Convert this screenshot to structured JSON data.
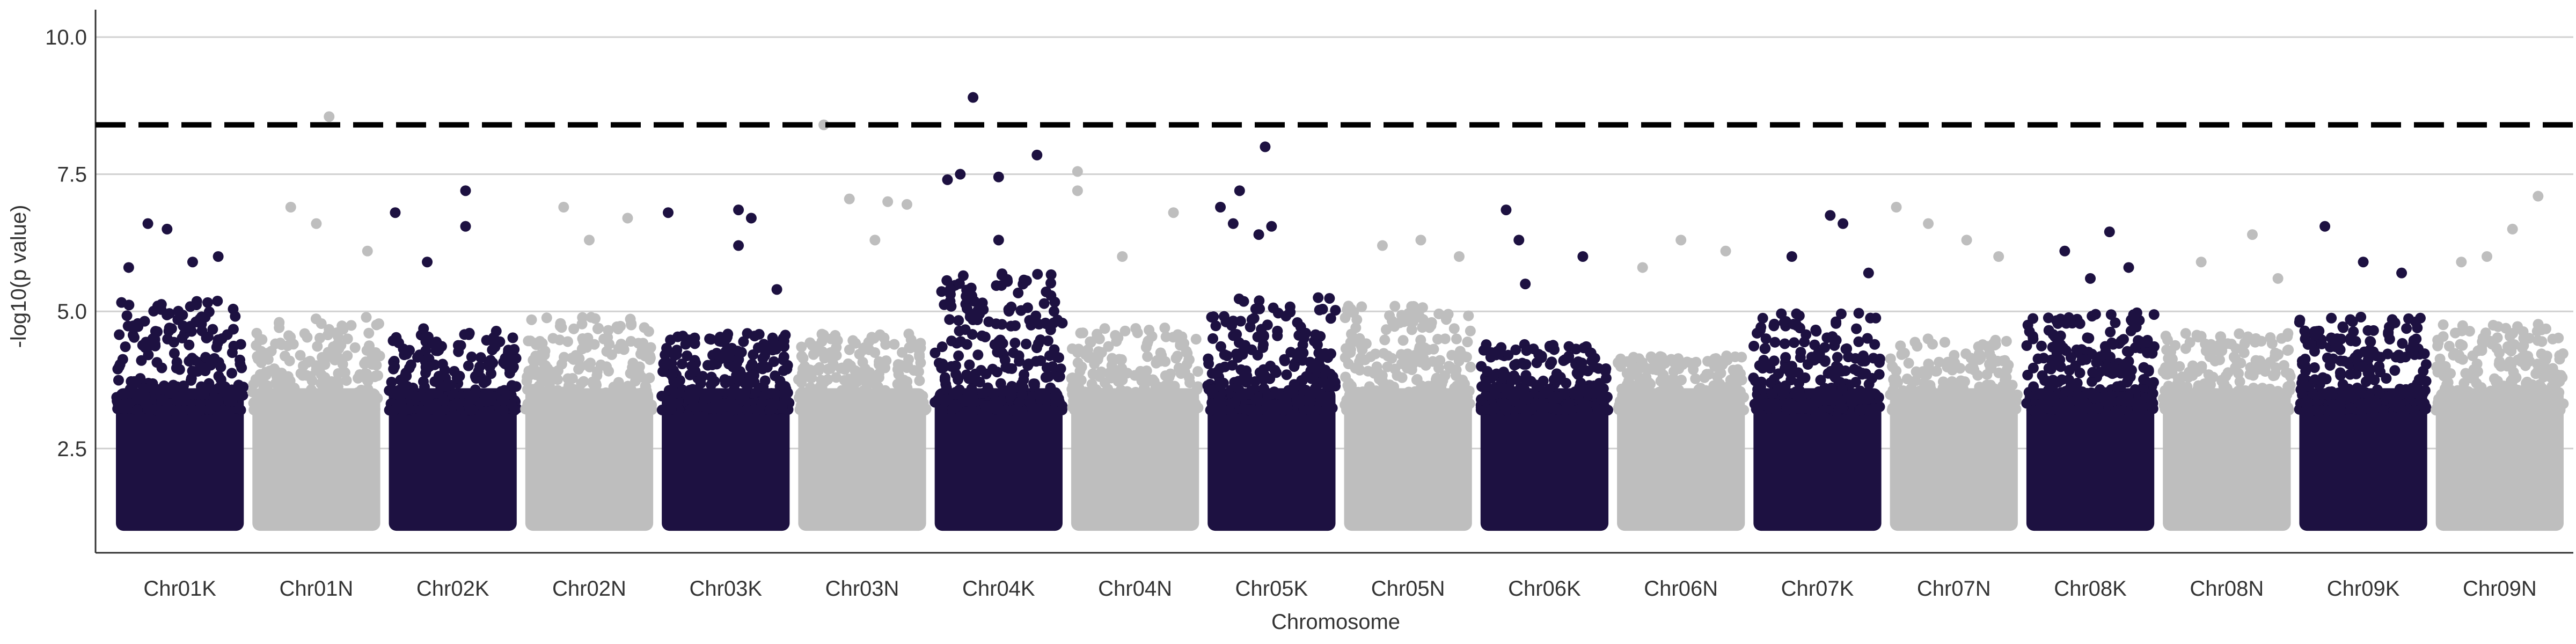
{
  "chart_data": {
    "type": "scatter",
    "xlabel": "Chromosome",
    "ylabel": "-log10(p value)",
    "ylim": [
      0.6,
      10.5
    ],
    "y_ticks": [
      2.5,
      5.0,
      7.5,
      10.0
    ],
    "y_tick_labels": [
      "2.5",
      "5.0",
      "7.5",
      "10.0"
    ],
    "grid": "horizontal major lines",
    "legend": "none",
    "threshold": 8.4,
    "colors": {
      "dark": "#1d1141",
      "light": "#bebebe",
      "threshold": "#000000",
      "grid": "#d0d0d0"
    },
    "chromosomes": [
      {
        "name": "Chr01K",
        "color": "dark",
        "top": 5.2,
        "peaks": [
          [
            0.25,
            6.6
          ],
          [
            0.4,
            6.5
          ],
          [
            0.1,
            5.8
          ],
          [
            0.6,
            5.9
          ],
          [
            0.8,
            6.0
          ]
        ]
      },
      {
        "name": "Chr01N",
        "color": "light",
        "top": 4.9,
        "peaks": [
          [
            0.6,
            8.55
          ],
          [
            0.3,
            6.9
          ],
          [
            0.5,
            6.6
          ],
          [
            0.9,
            6.1
          ]
        ]
      },
      {
        "name": "Chr02K",
        "color": "dark",
        "top": 4.7,
        "peaks": [
          [
            0.05,
            6.8
          ],
          [
            0.6,
            7.2
          ],
          [
            0.6,
            6.55
          ],
          [
            0.3,
            5.9
          ]
        ]
      },
      {
        "name": "Chr02N",
        "color": "light",
        "top": 4.9,
        "peaks": [
          [
            0.3,
            6.9
          ],
          [
            0.8,
            6.7
          ],
          [
            0.5,
            6.3
          ]
        ]
      },
      {
        "name": "Chr03K",
        "color": "dark",
        "top": 4.6,
        "peaks": [
          [
            0.05,
            6.8
          ],
          [
            0.6,
            6.85
          ],
          [
            0.7,
            6.7
          ],
          [
            0.6,
            6.2
          ],
          [
            0.9,
            5.4
          ]
        ]
      },
      {
        "name": "Chr03N",
        "color": "light",
        "top": 4.6,
        "peaks": [
          [
            0.2,
            8.4
          ],
          [
            0.4,
            7.05
          ],
          [
            0.7,
            7.0
          ],
          [
            0.85,
            6.95
          ],
          [
            0.6,
            6.3
          ]
        ]
      },
      {
        "name": "Chr04K",
        "color": "dark",
        "top": 5.7,
        "peaks": [
          [
            0.3,
            8.9
          ],
          [
            0.2,
            7.5
          ],
          [
            0.5,
            7.45
          ],
          [
            0.8,
            7.85
          ],
          [
            0.1,
            7.4
          ],
          [
            0.5,
            6.3
          ]
        ]
      },
      {
        "name": "Chr04N",
        "color": "light",
        "top": 4.7,
        "peaks": [
          [
            0.05,
            7.55
          ],
          [
            0.05,
            7.2
          ],
          [
            0.8,
            6.8
          ],
          [
            0.4,
            6.0
          ]
        ]
      },
      {
        "name": "Chr05K",
        "color": "dark",
        "top": 5.3,
        "peaks": [
          [
            0.45,
            8.0
          ],
          [
            0.1,
            6.9
          ],
          [
            0.25,
            7.2
          ],
          [
            0.2,
            6.6
          ],
          [
            0.5,
            6.55
          ],
          [
            0.4,
            6.4
          ]
        ]
      },
      {
        "name": "Chr05N",
        "color": "light",
        "top": 5.1,
        "peaks": [
          [
            0.3,
            6.2
          ],
          [
            0.6,
            6.3
          ],
          [
            0.9,
            6.0
          ]
        ]
      },
      {
        "name": "Chr06K",
        "color": "dark",
        "top": 4.4,
        "peaks": [
          [
            0.2,
            6.85
          ],
          [
            0.3,
            6.3
          ],
          [
            0.8,
            6.0
          ],
          [
            0.35,
            5.5
          ]
        ]
      },
      {
        "name": "Chr06N",
        "color": "light",
        "top": 4.2,
        "peaks": [
          [
            0.5,
            6.3
          ],
          [
            0.85,
            6.1
          ],
          [
            0.2,
            5.8
          ]
        ]
      },
      {
        "name": "Chr07K",
        "color": "dark",
        "top": 5.0,
        "peaks": [
          [
            0.6,
            6.75
          ],
          [
            0.7,
            6.6
          ],
          [
            0.3,
            6.0
          ],
          [
            0.9,
            5.7
          ]
        ]
      },
      {
        "name": "Chr07N",
        "color": "light",
        "top": 4.5,
        "peaks": [
          [
            0.05,
            6.9
          ],
          [
            0.3,
            6.6
          ],
          [
            0.6,
            6.3
          ],
          [
            0.85,
            6.0
          ]
        ]
      },
      {
        "name": "Chr08K",
        "color": "dark",
        "top": 5.0,
        "peaks": [
          [
            0.65,
            6.45
          ],
          [
            0.3,
            6.1
          ],
          [
            0.8,
            5.8
          ],
          [
            0.5,
            5.6
          ]
        ]
      },
      {
        "name": "Chr08N",
        "color": "light",
        "top": 4.6,
        "peaks": [
          [
            0.7,
            6.4
          ],
          [
            0.3,
            5.9
          ],
          [
            0.9,
            5.6
          ]
        ]
      },
      {
        "name": "Chr09K",
        "color": "dark",
        "top": 4.9,
        "peaks": [
          [
            0.2,
            6.55
          ],
          [
            0.5,
            5.9
          ],
          [
            0.8,
            5.7
          ]
        ]
      },
      {
        "name": "Chr09N",
        "color": "light",
        "top": 4.8,
        "peaks": [
          [
            0.8,
            7.1
          ],
          [
            0.6,
            6.5
          ],
          [
            0.4,
            6.0
          ],
          [
            0.2,
            5.9
          ]
        ]
      }
    ]
  }
}
